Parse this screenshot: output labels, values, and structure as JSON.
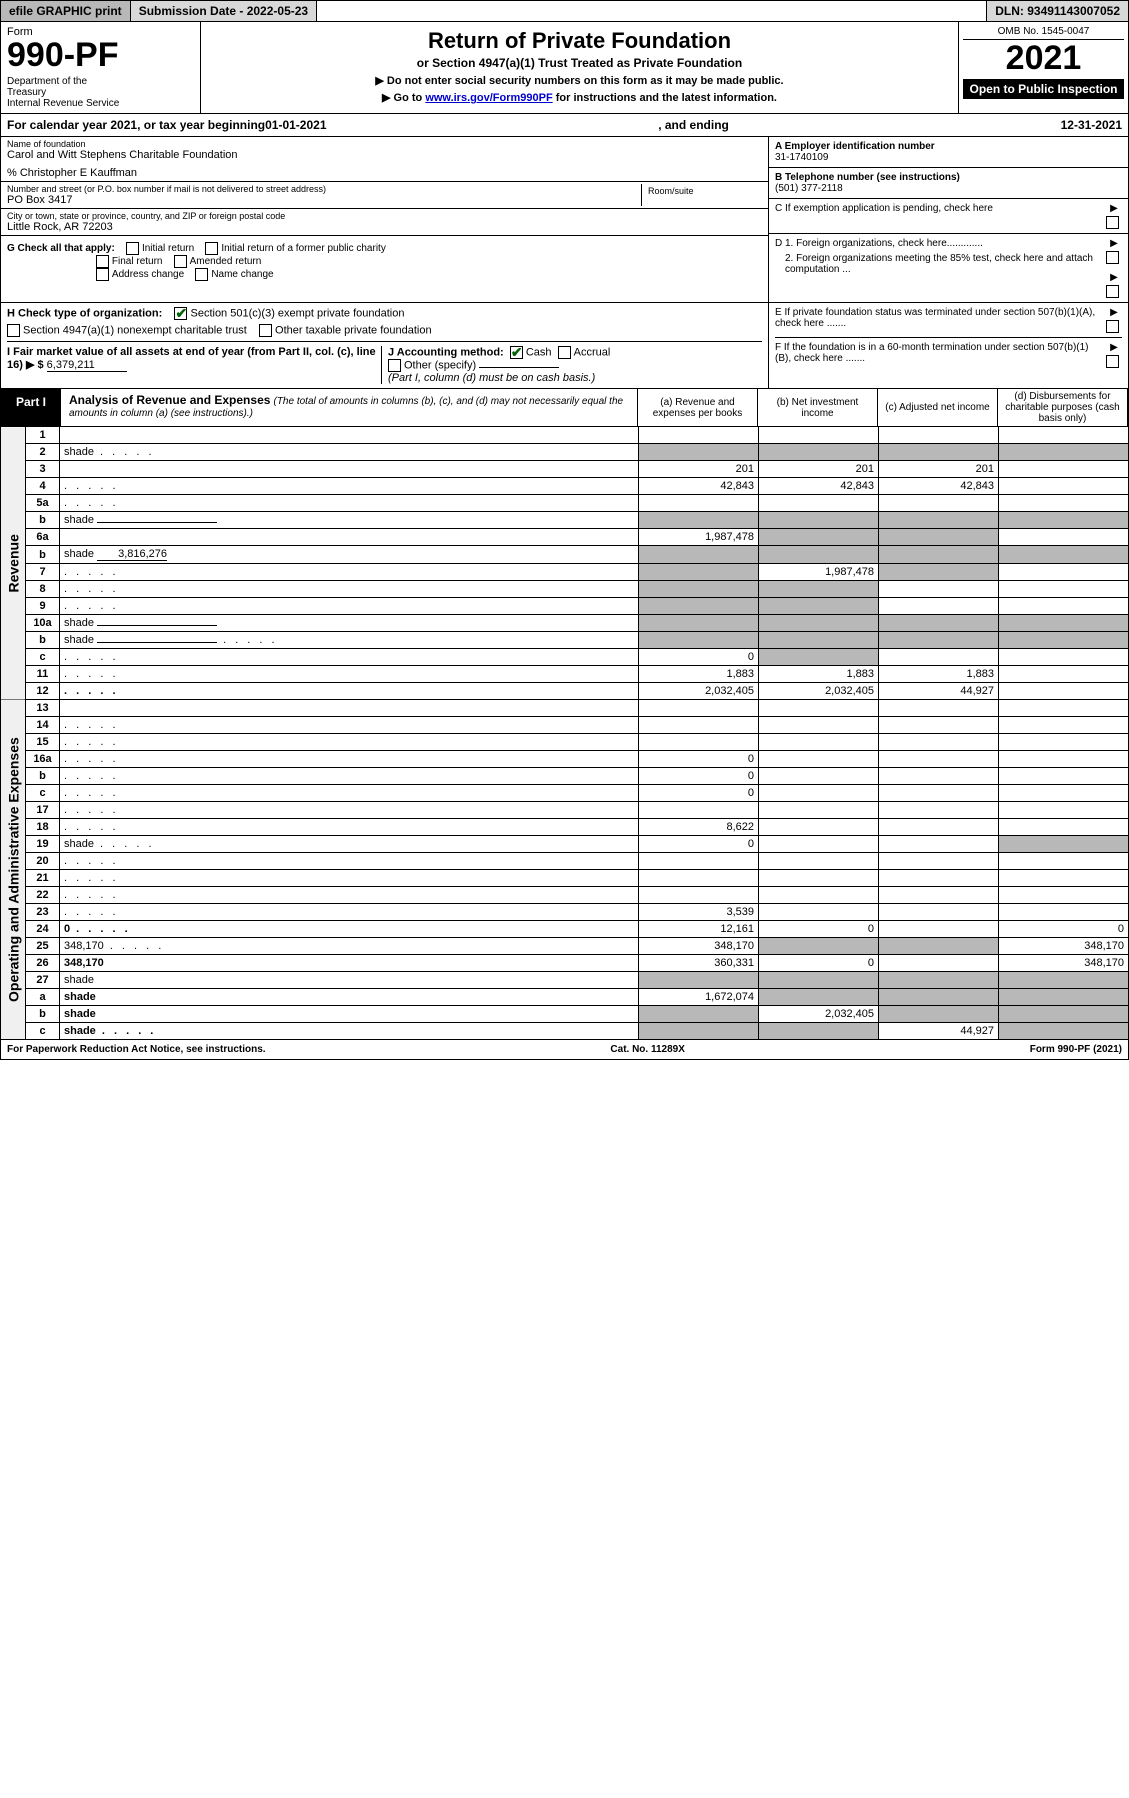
{
  "topbar": {
    "efile": "efile GRAPHIC print",
    "submission_label": "Submission Date - 2022-05-23",
    "dln": "DLN: 93491143007052"
  },
  "header": {
    "form_word": "Form",
    "form_number": "990-PF",
    "dept": "Department of the Treasury\nInternal Revenue Service",
    "title": "Return of Private Foundation",
    "subtitle1": "or Section 4947(a)(1) Trust Treated as Private Foundation",
    "subtitle2": "▶ Do not enter social security numbers on this form as it may be made public.",
    "subtitle3_prefix": "▶ Go to ",
    "subtitle3_link": "www.irs.gov/Form990PF",
    "subtitle3_suffix": " for instructions and the latest information.",
    "omb": "OMB No. 1545-0047",
    "year": "2021",
    "open": "Open to Public Inspection"
  },
  "calyear": {
    "prefix": "For calendar year 2021, or tax year beginning ",
    "begin": "01-01-2021",
    "mid": ", and ending ",
    "end": "12-31-2021"
  },
  "info": {
    "name_lbl": "Name of foundation",
    "name": "Carol and Witt Stephens Charitable Foundation",
    "care_of": "% Christopher E Kauffman",
    "addr_lbl": "Number and street (or P.O. box number if mail is not delivered to street address)",
    "addr": "PO Box 3417",
    "room_lbl": "Room/suite",
    "room": "",
    "city_lbl": "City or town, state or province, country, and ZIP or foreign postal code",
    "city": "Little Rock, AR  72203",
    "ein_lbl": "A Employer identification number",
    "ein": "31-1740109",
    "phone_lbl": "B Telephone number (see instructions)",
    "phone": "(501) 377-2118",
    "C": "C If exemption application is pending, check here",
    "D1": "D 1. Foreign organizations, check here.............",
    "D2": "2. Foreign organizations meeting the 85% test, check here and attach computation ...",
    "E": "E  If private foundation status was terminated under section 507(b)(1)(A), check here .......",
    "F": "F  If the foundation is in a 60-month termination under section 507(b)(1)(B), check here .......",
    "G_lbl": "G Check all that apply:",
    "G_opts": [
      "Initial return",
      "Initial return of a former public charity",
      "Final return",
      "Amended return",
      "Address change",
      "Name change"
    ],
    "H_lbl": "H Check type of organization:",
    "H1": "Section 501(c)(3) exempt private foundation",
    "H2": "Section 4947(a)(1) nonexempt charitable trust",
    "H3": "Other taxable private foundation",
    "I_lbl": "I Fair market value of all assets at end of year (from Part II, col. (c), line 16) ▶ $",
    "I_val": "6,379,211",
    "J_lbl": "J Accounting method:",
    "J_cash": "Cash",
    "J_accr": "Accrual",
    "J_other": "Other (specify)",
    "J_note": "(Part I, column (d) must be on cash basis.)"
  },
  "part1": {
    "label": "Part I",
    "title": "Analysis of Revenue and Expenses",
    "note": "(The total of amounts in columns (b), (c), and (d) may not necessarily equal the amounts in column (a) (see instructions).)",
    "col_a": "(a) Revenue and expenses per books",
    "col_b": "(b) Net investment income",
    "col_c": "(c) Adjusted net income",
    "col_d": "(d) Disbursements for charitable purposes (cash basis only)"
  },
  "side": {
    "revenue": "Revenue",
    "expenses": "Operating and Administrative Expenses"
  },
  "rows": [
    {
      "n": "1",
      "d": "",
      "a": "",
      "b": "",
      "c": ""
    },
    {
      "n": "2",
      "d": "shade",
      "a": "shade",
      "b": "shade",
      "c": "shade",
      "dots": true
    },
    {
      "n": "3",
      "d": "",
      "a": "201",
      "b": "201",
      "c": "201"
    },
    {
      "n": "4",
      "d": "",
      "a": "42,843",
      "b": "42,843",
      "c": "42,843",
      "dots": true
    },
    {
      "n": "5a",
      "d": "",
      "a": "",
      "b": "",
      "c": "",
      "dots": true
    },
    {
      "n": "b",
      "d": "shade",
      "a": "shade",
      "b": "shade",
      "c": "shade",
      "inline": true
    },
    {
      "n": "6a",
      "d": "",
      "a": "1,987,478",
      "b": "shade",
      "c": "shade"
    },
    {
      "n": "b",
      "d": "shade",
      "a": "shade",
      "b": "shade",
      "c": "shade",
      "inline_val": "3,816,276"
    },
    {
      "n": "7",
      "d": "",
      "a": "shade",
      "b": "1,987,478",
      "c": "shade",
      "dots": true
    },
    {
      "n": "8",
      "d": "",
      "a": "shade",
      "b": "shade",
      "c": "",
      "dots": true
    },
    {
      "n": "9",
      "d": "",
      "a": "shade",
      "b": "shade",
      "c": "",
      "dots": true
    },
    {
      "n": "10a",
      "d": "shade",
      "a": "shade",
      "b": "shade",
      "c": "shade",
      "inline": true
    },
    {
      "n": "b",
      "d": "shade",
      "a": "shade",
      "b": "shade",
      "c": "shade",
      "inline": true,
      "dots": true
    },
    {
      "n": "c",
      "d": "",
      "a": "0",
      "b": "shade",
      "c": "",
      "dots": true
    },
    {
      "n": "11",
      "d": "",
      "a": "1,883",
      "b": "1,883",
      "c": "1,883",
      "dots": true
    },
    {
      "n": "12",
      "d": "",
      "a": "2,032,405",
      "b": "2,032,405",
      "c": "44,927",
      "bold": true,
      "dots": true
    }
  ],
  "rows2": [
    {
      "n": "13",
      "d": "",
      "a": "",
      "b": "",
      "c": ""
    },
    {
      "n": "14",
      "d": "",
      "a": "",
      "b": "",
      "c": "",
      "dots": true
    },
    {
      "n": "15",
      "d": "",
      "a": "",
      "b": "",
      "c": "",
      "dots": true
    },
    {
      "n": "16a",
      "d": "",
      "a": "0",
      "b": "",
      "c": "",
      "dots": true
    },
    {
      "n": "b",
      "d": "",
      "a": "0",
      "b": "",
      "c": "",
      "dots": true
    },
    {
      "n": "c",
      "d": "",
      "a": "0",
      "b": "",
      "c": "",
      "dots": true
    },
    {
      "n": "17",
      "d": "",
      "a": "",
      "b": "",
      "c": "",
      "dots": true
    },
    {
      "n": "18",
      "d": "",
      "a": "8,622",
      "b": "",
      "c": "",
      "dots": true
    },
    {
      "n": "19",
      "d": "shade",
      "a": "0",
      "b": "",
      "c": "",
      "dots": true
    },
    {
      "n": "20",
      "d": "",
      "a": "",
      "b": "",
      "c": "",
      "dots": true
    },
    {
      "n": "21",
      "d": "",
      "a": "",
      "b": "",
      "c": "",
      "dots": true
    },
    {
      "n": "22",
      "d": "",
      "a": "",
      "b": "",
      "c": "",
      "dots": true
    },
    {
      "n": "23",
      "d": "",
      "a": "3,539",
      "b": "",
      "c": "",
      "dots": true
    },
    {
      "n": "24",
      "d": "0",
      "a": "12,161",
      "b": "0",
      "c": "",
      "bold": true,
      "dots": true
    },
    {
      "n": "25",
      "d": "348,170",
      "a": "348,170",
      "b": "shade",
      "c": "shade",
      "dots": true
    },
    {
      "n": "26",
      "d": "348,170",
      "a": "360,331",
      "b": "0",
      "c": "",
      "bold": true
    },
    {
      "n": "27",
      "d": "shade",
      "a": "shade",
      "b": "shade",
      "c": "shade"
    },
    {
      "n": "a",
      "d": "shade",
      "a": "1,672,074",
      "b": "shade",
      "c": "shade",
      "bold": true
    },
    {
      "n": "b",
      "d": "shade",
      "a": "shade",
      "b": "2,032,405",
      "c": "shade",
      "bold": true
    },
    {
      "n": "c",
      "d": "shade",
      "a": "shade",
      "b": "shade",
      "c": "44,927",
      "bold": true,
      "dots": true
    }
  ],
  "footer": {
    "left": "For Paperwork Reduction Act Notice, see instructions.",
    "mid": "Cat. No. 11289X",
    "right": "Form 990-PF (2021)"
  },
  "colwidths": {
    "side": 24,
    "line": 34,
    "desc": 0,
    "a": 120,
    "b": 120,
    "c": 120,
    "d": 130
  },
  "colors": {
    "shade": "#b8b8b8",
    "link": "#0000cc",
    "check": "#006400"
  }
}
